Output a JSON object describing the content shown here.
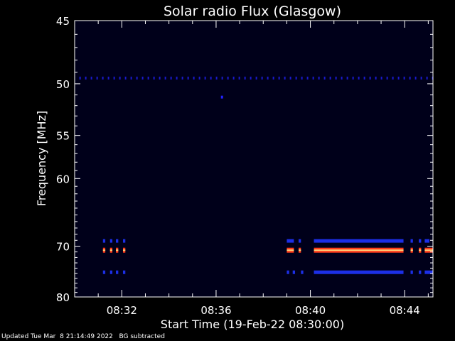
{
  "chart_data": {
    "type": "heatmap",
    "title": "Solar radio Flux (Glasgow)",
    "xlabel": "Start Time (19-Feb-22 08:30:00)",
    "ylabel": "Frequency [MHz]",
    "x_unit": "minutes after 08:30:00",
    "xlim": [
      0,
      15.2
    ],
    "x_ticks": [
      {
        "value": 2,
        "label": "08:32"
      },
      {
        "value": 6,
        "label": "08:36"
      },
      {
        "value": 10,
        "label": "08:40"
      },
      {
        "value": 14,
        "label": "08:44"
      }
    ],
    "y_tick_labels": [
      "45",
      "50",
      "55",
      "60",
      "70",
      "80"
    ],
    "ylim_top": 45,
    "ylim_bottom": 80,
    "background_color": "#00001a",
    "bands": [
      {
        "freq": 49.5,
        "level": "low",
        "color": "#1a1acc",
        "style": "dotted",
        "segments": [
          [
            0.2,
            15.2
          ]
        ]
      },
      {
        "freq": 69.1,
        "level": "medium",
        "color": "#1c2fe6",
        "segments": [
          [
            1.2,
            1.3
          ],
          [
            1.5,
            1.6
          ],
          [
            1.75,
            1.85
          ],
          [
            2.05,
            2.15
          ],
          [
            9.0,
            9.3
          ],
          [
            9.5,
            9.6
          ],
          [
            10.15,
            13.95
          ],
          [
            14.25,
            14.35
          ],
          [
            14.6,
            14.7
          ],
          [
            14.85,
            15.05
          ]
        ]
      },
      {
        "freq": 70.7,
        "level": "high",
        "color": "#ff3b1a",
        "segments": [
          [
            1.2,
            1.3
          ],
          [
            1.5,
            1.6
          ],
          [
            1.75,
            1.85
          ],
          [
            2.05,
            2.15
          ],
          [
            9.0,
            9.3
          ],
          [
            9.5,
            9.6
          ],
          [
            10.15,
            13.95
          ],
          [
            14.25,
            14.35
          ],
          [
            14.6,
            14.7
          ],
          [
            14.85,
            15.2
          ]
        ]
      },
      {
        "freq": 74.8,
        "level": "medium",
        "color": "#1c2fe6",
        "segments": [
          [
            1.2,
            1.3
          ],
          [
            1.5,
            1.6
          ],
          [
            1.75,
            1.85
          ],
          [
            2.05,
            2.15
          ],
          [
            9.0,
            9.1
          ],
          [
            9.25,
            9.35
          ],
          [
            9.6,
            9.7
          ],
          [
            10.15,
            13.95
          ],
          [
            14.25,
            14.35
          ],
          [
            14.6,
            14.7
          ],
          [
            14.85,
            15.2
          ]
        ]
      }
    ],
    "points": [
      {
        "x": 6.25,
        "freq": 51.2,
        "color": "#2222ff"
      }
    ]
  },
  "footer": {
    "updated": "Updated Tue Mar  8 21:14:49 2022",
    "note": "BG subtracted"
  }
}
